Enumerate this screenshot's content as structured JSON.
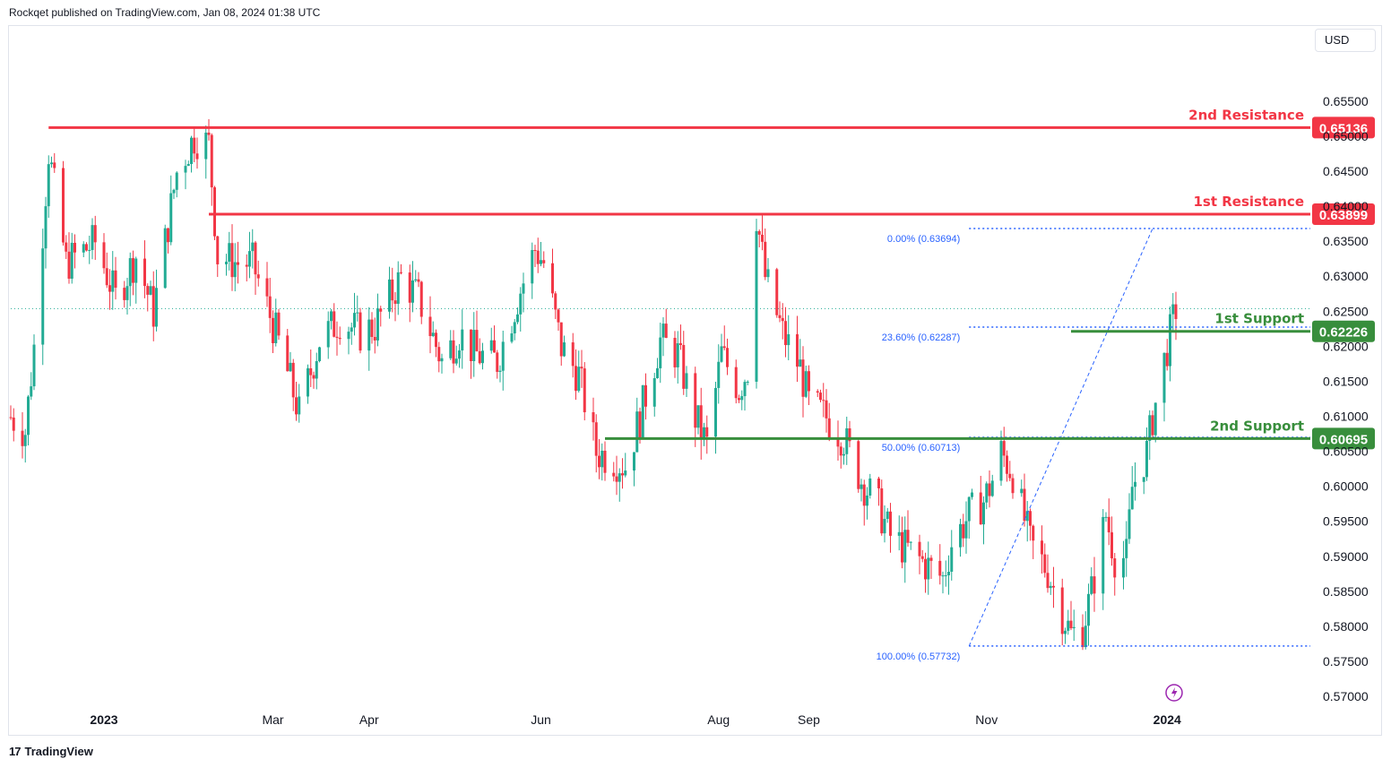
{
  "header": {
    "text": "Rockqet published on TradingView.com, Jan 08, 2024 01:38 UTC"
  },
  "currency_button": "USD",
  "footer": {
    "logo_glyph": "17",
    "brand": "TradingView"
  },
  "colors": {
    "up": "#22ab94",
    "down": "#f23645",
    "resistance": "#f23645",
    "support": "#388e3c",
    "fib": "#2962ff",
    "axis_text": "#131722",
    "fib_text": "#2962ff"
  },
  "chart_data": {
    "type": "candlestick",
    "symbol_quote": "USD",
    "ylim": [
      0.5695,
      0.6578
    ],
    "y_ticks": [
      {
        "value": 0.655,
        "label": "0.65500"
      },
      {
        "value": 0.65,
        "label": "0.65000"
      },
      {
        "value": 0.645,
        "label": "0.64500"
      },
      {
        "value": 0.64,
        "label": "0.64000"
      },
      {
        "value": 0.635,
        "label": "0.63500"
      },
      {
        "value": 0.63,
        "label": "0.63000"
      },
      {
        "value": 0.625,
        "label": "0.62500"
      },
      {
        "value": 0.62,
        "label": "0.62000"
      },
      {
        "value": 0.615,
        "label": "0.61500"
      },
      {
        "value": 0.61,
        "label": "0.61000"
      },
      {
        "value": 0.605,
        "label": "0.60500"
      },
      {
        "value": 0.6,
        "label": "0.60000"
      },
      {
        "value": 0.595,
        "label": "0.59500"
      },
      {
        "value": 0.59,
        "label": "0.59000"
      },
      {
        "value": 0.585,
        "label": "0.58500"
      },
      {
        "value": 0.58,
        "label": "0.58000"
      },
      {
        "value": 0.575,
        "label": "0.57500"
      },
      {
        "value": 0.57,
        "label": "0.57000"
      }
    ],
    "x_ticks": [
      {
        "label": "2023",
        "bold": true,
        "date": "2023-01-02"
      },
      {
        "label": "Mar",
        "bold": false,
        "date": "2023-03-01"
      },
      {
        "label": "Apr",
        "bold": false,
        "date": "2023-04-03"
      },
      {
        "label": "Jun",
        "bold": false,
        "date": "2023-06-01"
      },
      {
        "label": "Aug",
        "bold": false,
        "date": "2023-08-01"
      },
      {
        "label": "Sep",
        "bold": false,
        "date": "2023-09-01"
      },
      {
        "label": "Nov",
        "bold": false,
        "date": "2023-11-01"
      },
      {
        "label": "2024",
        "bold": true,
        "date": "2024-01-02"
      }
    ],
    "date_range": [
      "2022-12-01",
      "2024-01-05"
    ],
    "levels": [
      {
        "name": "2nd Resistance",
        "value": 0.65136,
        "label": "0.65136",
        "kind": "resistance",
        "start": "2022-12-14"
      },
      {
        "name": "1st Resistance",
        "value": 0.63899,
        "label": "0.63899",
        "kind": "resistance",
        "start": "2023-02-07"
      },
      {
        "name": "1st Support",
        "value": 0.62226,
        "label": "0.62226",
        "kind": "support",
        "start": "2023-11-30"
      },
      {
        "name": "2nd Support",
        "value": 0.60695,
        "label": "0.60695",
        "kind": "support",
        "start": "2023-06-23"
      }
    ],
    "fibonacci": {
      "start": "2023-10-26",
      "levels": [
        {
          "label": "0.00% (0.63694)",
          "value": 0.63694
        },
        {
          "label": "23.60% (0.62287)",
          "value": 0.62287
        },
        {
          "label": "50.00% (0.60713)",
          "value": 0.60713
        },
        {
          "label": "100.00% (0.57732)",
          "value": 0.57732
        }
      ],
      "trend": [
        {
          "date": "2023-10-26",
          "value": 0.57732
        },
        {
          "date": "2023-12-28",
          "value": 0.63694
        }
      ]
    },
    "last_price": 0.6255,
    "path": [
      [
        "2022-12-01",
        0.61
      ],
      [
        "2022-12-06",
        0.608
      ],
      [
        "2022-12-09",
        0.62
      ],
      [
        "2022-12-14",
        0.648
      ],
      [
        "2022-12-20",
        0.632
      ],
      [
        "2022-12-30",
        0.635
      ],
      [
        "2023-01-06",
        0.627
      ],
      [
        "2023-01-13",
        0.633
      ],
      [
        "2023-01-19",
        0.625
      ],
      [
        "2023-01-27",
        0.645
      ],
      [
        "2023-02-02",
        0.65
      ],
      [
        "2023-02-07",
        0.649
      ],
      [
        "2023-02-10",
        0.633
      ],
      [
        "2023-02-17",
        0.632
      ],
      [
        "2023-02-22",
        0.632
      ],
      [
        "2023-03-02",
        0.622
      ],
      [
        "2023-03-07",
        0.615
      ],
      [
        "2023-03-10",
        0.6105
      ],
      [
        "2023-03-17",
        0.621
      ],
      [
        "2023-03-24",
        0.624
      ],
      [
        "2023-03-31",
        0.622
      ],
      [
        "2023-04-05",
        0.623
      ],
      [
        "2023-04-14",
        0.63
      ],
      [
        "2023-04-20",
        0.627
      ],
      [
        "2023-04-28",
        0.618
      ],
      [
        "2023-05-04",
        0.622
      ],
      [
        "2023-05-10",
        0.619
      ],
      [
        "2023-05-17",
        0.618
      ],
      [
        "2023-05-24",
        0.627
      ],
      [
        "2023-05-30",
        0.634
      ],
      [
        "2023-06-02",
        0.632
      ],
      [
        "2023-06-08",
        0.62
      ],
      [
        "2023-06-14",
        0.616
      ],
      [
        "2023-06-20",
        0.605
      ],
      [
        "2023-06-26",
        0.604
      ],
      [
        "2023-06-30",
        0.603
      ],
      [
        "2023-07-05",
        0.61
      ],
      [
        "2023-07-12",
        0.621
      ],
      [
        "2023-07-18",
        0.619
      ],
      [
        "2023-07-24",
        0.61
      ],
      [
        "2023-07-28",
        0.606
      ],
      [
        "2023-08-02",
        0.619
      ],
      [
        "2023-08-08",
        0.614
      ],
      [
        "2023-08-11",
        0.617
      ],
      [
        "2023-08-14",
        0.639
      ],
      [
        "2023-08-17",
        0.63
      ],
      [
        "2023-08-23",
        0.622
      ],
      [
        "2023-08-29",
        0.617
      ],
      [
        "2023-09-01",
        0.612
      ],
      [
        "2023-09-07",
        0.61
      ],
      [
        "2023-09-13",
        0.607
      ],
      [
        "2023-09-19",
        0.601
      ],
      [
        "2023-09-25",
        0.597
      ],
      [
        "2023-09-29",
        0.593
      ],
      [
        "2023-10-05",
        0.591
      ],
      [
        "2023-10-11",
        0.589
      ],
      [
        "2023-10-17",
        0.587
      ],
      [
        "2023-10-20",
        0.592
      ],
      [
        "2023-10-26",
        0.596
      ],
      [
        "2023-10-31",
        0.598
      ],
      [
        "2023-11-03",
        0.601
      ],
      [
        "2023-11-06",
        0.605
      ],
      [
        "2023-11-10",
        0.602
      ],
      [
        "2023-11-16",
        0.592
      ],
      [
        "2023-11-22",
        0.588
      ],
      [
        "2023-11-27",
        0.582
      ],
      [
        "2023-11-30",
        0.579
      ],
      [
        "2023-12-04",
        0.58
      ],
      [
        "2023-12-07",
        0.585
      ],
      [
        "2023-12-12",
        0.596
      ],
      [
        "2023-12-15",
        0.59
      ],
      [
        "2023-12-19",
        0.59
      ],
      [
        "2023-12-21",
        0.6
      ],
      [
        "2023-12-26",
        0.605
      ],
      [
        "2023-12-28",
        0.61
      ],
      [
        "2024-01-02",
        0.62
      ],
      [
        "2024-01-05",
        0.6255
      ]
    ]
  }
}
